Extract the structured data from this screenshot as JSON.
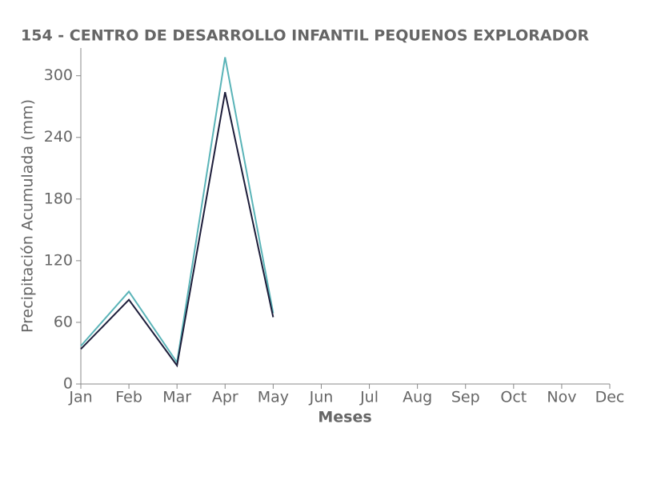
{
  "chart_data": {
    "type": "line",
    "title": "154 - CENTRO DE DESARROLLO INFANTIL PEQUENOS EXPLORADOR",
    "x_label": "Meses",
    "y_label": "Precipitación Acumulada (mm)",
    "categories": [
      "Jan",
      "Feb",
      "Mar",
      "Apr",
      "May",
      "Jun",
      "Jul",
      "Aug",
      "Sep",
      "Oct",
      "Nov",
      "Dec"
    ],
    "series": [
      {
        "color": "#5ab4b8",
        "values": [
          37,
          90,
          21,
          318,
          69,
          null,
          null,
          null,
          null,
          null,
          null,
          null
        ]
      },
      {
        "color": "#1d1d3a",
        "values": [
          34,
          82,
          18,
          284,
          65,
          null,
          null,
          null,
          null,
          null,
          null,
          null
        ]
      }
    ],
    "ylim": [
      0,
      327
    ],
    "yticks": [
      0,
      60,
      120,
      180,
      240,
      300
    ],
    "grid": false
  }
}
